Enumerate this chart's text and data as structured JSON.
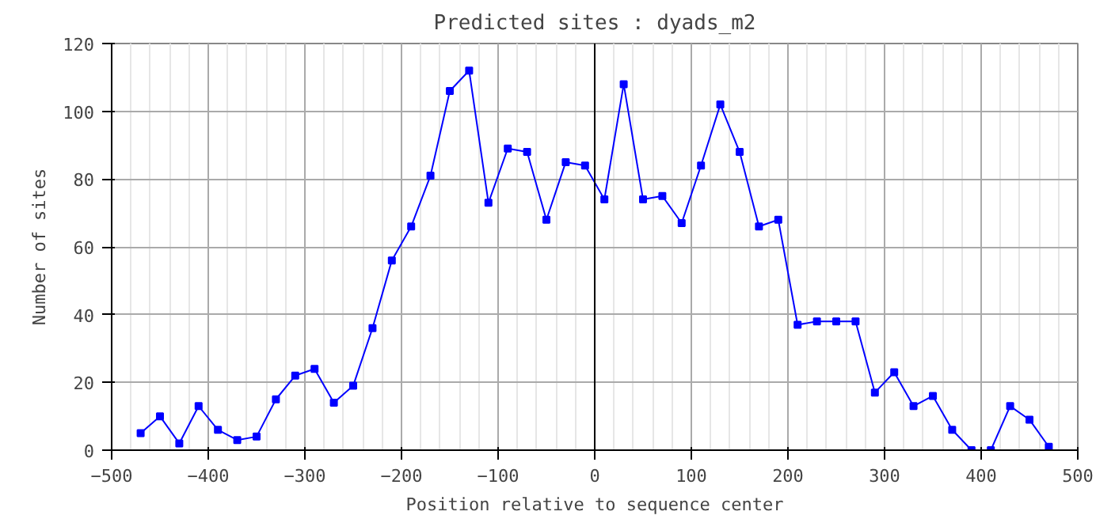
{
  "chart_data": {
    "type": "line",
    "title": "Predicted sites : dyads_m2",
    "xlabel": "Position relative to sequence center",
    "ylabel": "Number of sites",
    "x": [
      -470,
      -450,
      -430,
      -410,
      -390,
      -370,
      -350,
      -330,
      -310,
      -290,
      -270,
      -250,
      -230,
      -210,
      -190,
      -170,
      -150,
      -130,
      -110,
      -90,
      -70,
      -50,
      -30,
      -10,
      10,
      30,
      50,
      70,
      90,
      110,
      130,
      150,
      170,
      190,
      210,
      230,
      250,
      270,
      290,
      310,
      330,
      350,
      370,
      390,
      410,
      430,
      450,
      470
    ],
    "series": [
      {
        "color": "#0000ff",
        "values": [
          5,
          10,
          2,
          13,
          6,
          3,
          4,
          15,
          22,
          24,
          14,
          19,
          36,
          56,
          66,
          81,
          106,
          112,
          73,
          89,
          88,
          68,
          85,
          84,
          74,
          108,
          74,
          75,
          67,
          84,
          102,
          88,
          66,
          68,
          37,
          38,
          38,
          38,
          17,
          23,
          13,
          16,
          6,
          0,
          0,
          13,
          9,
          1
        ]
      }
    ],
    "xlim": [
      -500,
      500
    ],
    "ylim": [
      0,
      120
    ],
    "xticks": [
      -500,
      -400,
      -300,
      -200,
      -100,
      0,
      100,
      200,
      300,
      400,
      500
    ],
    "yticks": [
      0,
      20,
      40,
      60,
      80,
      100,
      120
    ],
    "ref_lines": [
      {
        "axis": "x",
        "value": 0,
        "color": "#000000"
      }
    ],
    "grid": true,
    "marker": "square",
    "line_style": "solid"
  }
}
